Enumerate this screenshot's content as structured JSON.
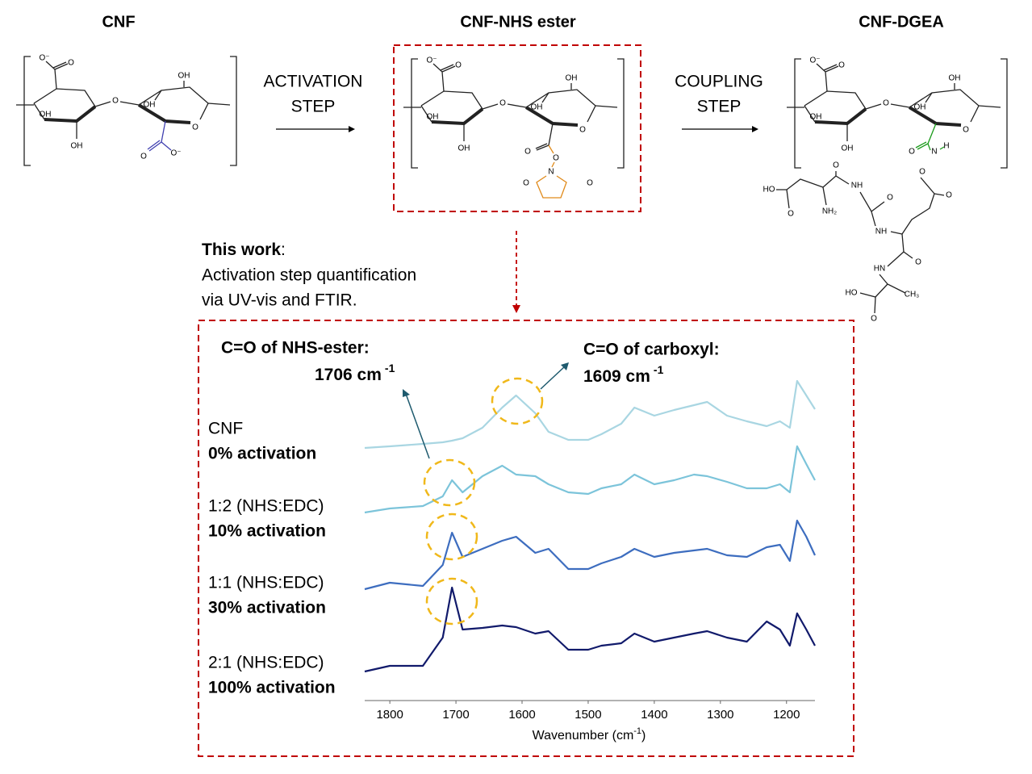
{
  "structures": [
    {
      "title": "CNF",
      "atoms": [
        "O⁻",
        "O",
        "OH",
        "OH",
        "O",
        "OH",
        "OH",
        "O",
        "O",
        "O⁻"
      ]
    },
    {
      "title": "CNF-NHS ester",
      "atoms": [
        "O⁻",
        "O",
        "OH",
        "OH",
        "O",
        "OH",
        "OH",
        "O",
        "O",
        "O",
        "N",
        "O",
        "O"
      ]
    },
    {
      "title": "CNF-DGEA",
      "atoms": [
        "O⁻",
        "O",
        "OH",
        "OH",
        "O",
        "OH",
        "OH",
        "O",
        "O",
        "N",
        "H",
        "O",
        "O",
        "HO",
        "O",
        "O",
        "NH",
        "NH₂",
        "O",
        "NH",
        "O",
        "HN",
        "HO",
        "CH₃",
        "O"
      ]
    }
  ],
  "steps": [
    {
      "lines": [
        "ACTIVATION",
        "STEP"
      ]
    },
    {
      "lines": [
        "COUPLING",
        "STEP"
      ]
    }
  ],
  "this_work": {
    "heading": "This work",
    "colon": ":",
    "lines": [
      "Activation step quantification",
      "via UV-vis and FTIR."
    ]
  },
  "chart_data": {
    "type": "line",
    "x_label": {
      "text": "Wavenumber (cm",
      "sup": "-1",
      "end": ")"
    },
    "xlim": [
      1838,
      1157
    ],
    "xticks": [
      1800,
      1700,
      1600,
      1500,
      1400,
      1300,
      1200
    ],
    "ylim": [
      0,
      428
    ],
    "x": [
      1838,
      1800,
      1750,
      1720,
      1706,
      1690,
      1660,
      1630,
      1609,
      1580,
      1560,
      1530,
      1500,
      1480,
      1450,
      1430,
      1400,
      1370,
      1340,
      1320,
      1290,
      1260,
      1230,
      1210,
      1195,
      1184,
      1170,
      1157
    ],
    "series": [
      {
        "name": "CNF",
        "activation": "0% activation",
        "color": "#a9d6e2",
        "values": [
          313,
          315,
          318,
          320,
          322,
          325,
          338,
          363,
          378,
          356,
          333,
          323,
          323,
          330,
          343,
          363,
          353,
          360,
          366,
          370,
          353,
          346,
          340,
          346,
          338,
          396,
          378,
          361
        ]
      },
      {
        "name": "1:2 (NHS:EDC)",
        "activation": "10% activation",
        "color": "#7cc4da",
        "values": [
          233,
          238,
          241,
          253,
          273,
          258,
          278,
          291,
          280,
          278,
          268,
          258,
          256,
          263,
          268,
          280,
          268,
          273,
          280,
          278,
          271,
          263,
          263,
          268,
          258,
          315,
          293,
          273
        ]
      },
      {
        "name": "1:1 (NHS:EDC)",
        "activation": "30% activation",
        "color": "#3d6dbf",
        "values": [
          138,
          146,
          142,
          168,
          208,
          178,
          188,
          198,
          203,
          183,
          188,
          163,
          163,
          170,
          178,
          188,
          178,
          183,
          186,
          188,
          180,
          178,
          190,
          193,
          173,
          223,
          203,
          180
        ]
      },
      {
        "name": "2:1 (NHS:EDC)",
        "activation": "100% activation",
        "color": "#111a6b",
        "values": [
          36,
          43,
          43,
          78,
          140,
          88,
          90,
          93,
          91,
          83,
          86,
          63,
          63,
          68,
          71,
          83,
          73,
          78,
          83,
          86,
          78,
          73,
          98,
          88,
          68,
          108,
          88,
          68
        ]
      }
    ],
    "annotations": [
      {
        "title": "C=O of NHS-ester:",
        "value": "1706 cm",
        "sup": "-1"
      },
      {
        "title": "C=O of carboxyl:",
        "value": "1609 cm",
        "sup": "-1"
      }
    ]
  }
}
